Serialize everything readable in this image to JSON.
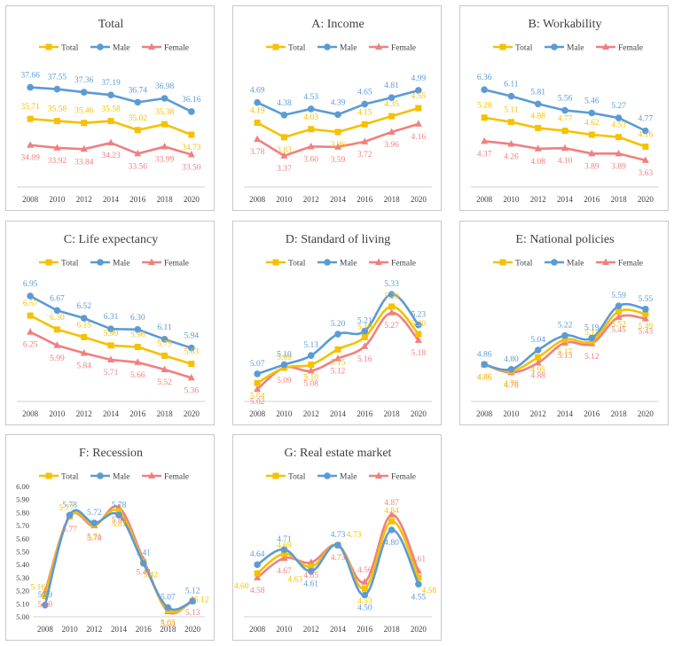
{
  "legend": [
    "Total",
    "Male",
    "Female"
  ],
  "colors": {
    "Total": "#f5c100",
    "Male": "#5b9bd5",
    "Female": "#f08080"
  },
  "chart_data": [
    {
      "type": "line",
      "title": "Total",
      "x": [
        "2008",
        "2010",
        "2012",
        "2014",
        "2016",
        "2018",
        "2020"
      ],
      "series": [
        {
          "name": "Total",
          "values": [
            35.71,
            35.58,
            35.46,
            35.58,
            35.02,
            35.38,
            34.73
          ]
        },
        {
          "name": "Male",
          "values": [
            37.66,
            37.55,
            37.36,
            37.19,
            36.74,
            36.98,
            36.16
          ]
        },
        {
          "name": "Female",
          "values": [
            34.09,
            33.92,
            33.84,
            34.23,
            33.56,
            33.99,
            33.5
          ]
        }
      ],
      "ylim": [
        31.5,
        39.5
      ]
    },
    {
      "type": "line",
      "title": "A: Income",
      "x": [
        "2008",
        "2010",
        "2012",
        "2014",
        "2016",
        "2018",
        "2020"
      ],
      "series": [
        {
          "name": "Total",
          "values": [
            4.19,
            3.83,
            4.03,
            3.96,
            4.15,
            4.35,
            4.55
          ]
        },
        {
          "name": "Male",
          "values": [
            4.69,
            4.38,
            4.53,
            4.39,
            4.65,
            4.81,
            4.99
          ]
        },
        {
          "name": "Female",
          "values": [
            3.78,
            3.37,
            3.6,
            3.59,
            3.72,
            3.96,
            4.16
          ]
        }
      ],
      "ylim": [
        2.6,
        5.8
      ]
    },
    {
      "type": "line",
      "title": "B: Workability",
      "x": [
        "2008",
        "2010",
        "2012",
        "2014",
        "2016",
        "2018",
        "2020"
      ],
      "series": [
        {
          "name": "Total",
          "values": [
            5.28,
            5.11,
            4.88,
            4.77,
            4.62,
            4.53,
            4.16
          ]
        },
        {
          "name": "Male",
          "values": [
            6.36,
            6.11,
            5.81,
            5.56,
            5.46,
            5.27,
            4.77
          ]
        },
        {
          "name": "Female",
          "values": [
            4.37,
            4.26,
            4.08,
            4.1,
            3.89,
            3.89,
            3.63
          ]
        }
      ],
      "ylim": [
        2.6,
        7.6
      ]
    },
    {
      "type": "line",
      "title": "C: Life expectancy",
      "x": [
        "2008",
        "2010",
        "2012",
        "2014",
        "2016",
        "2018",
        "2020"
      ],
      "series": [
        {
          "name": "Total",
          "values": [
            6.57,
            6.3,
            6.15,
            5.99,
            5.96,
            5.79,
            5.63
          ]
        },
        {
          "name": "Male",
          "values": [
            6.95,
            6.67,
            6.52,
            6.31,
            6.3,
            6.11,
            5.94
          ]
        },
        {
          "name": "Female",
          "values": [
            6.25,
            5.99,
            5.84,
            5.71,
            5.66,
            5.52,
            5.36
          ]
        }
      ],
      "ylim": [
        4.9,
        7.4
      ]
    },
    {
      "type": "line",
      "title": "D: Standard of living",
      "x": [
        "2008",
        "2010",
        "2012",
        "2014",
        "2016",
        "2018",
        "2020"
      ],
      "series": [
        {
          "name": "Total",
          "values": [
            5.04,
            5.09,
            5.1,
            5.15,
            5.19,
            5.29,
            5.2
          ]
        },
        {
          "name": "Male",
          "values": [
            5.07,
            5.1,
            5.13,
            5.2,
            5.21,
            5.33,
            5.23
          ]
        },
        {
          "name": "Female",
          "values": [
            5.02,
            5.09,
            5.08,
            5.12,
            5.16,
            5.27,
            5.18
          ]
        }
      ],
      "ylim": [
        4.98,
        5.4
      ]
    },
    {
      "type": "line",
      "title": "E: National policies",
      "x": [
        "2008",
        "2010",
        "2012",
        "2014",
        "2016",
        "2018",
        "2020"
      ],
      "series": [
        {
          "name": "Total",
          "values": [
            4.86,
            4.78,
            4.95,
            5.17,
            5.15,
            5.52,
            5.49
          ]
        },
        {
          "name": "Male",
          "values": [
            4.86,
            4.8,
            5.04,
            5.22,
            5.19,
            5.59,
            5.55
          ]
        },
        {
          "name": "Female",
          "values": [
            4.86,
            4.76,
            4.88,
            5.13,
            5.12,
            5.45,
            5.43
          ]
        }
      ],
      "ylim": [
        4.4,
        6.0
      ]
    },
    {
      "type": "line",
      "title": "F: Recession",
      "x": [
        "2008",
        "2010",
        "2012",
        "2014",
        "2016",
        "2018",
        "2020"
      ],
      "series": [
        {
          "name": "Total",
          "values": [
            5.16,
            5.77,
            5.71,
            5.81,
            5.42,
            5.05,
            5.12
          ]
        },
        {
          "name": "Male",
          "values": [
            5.09,
            5.78,
            5.72,
            5.78,
            5.41,
            5.07,
            5.12
          ]
        },
        {
          "name": "Female",
          "values": [
            5.19,
            5.77,
            5.7,
            5.84,
            5.44,
            5.04,
            5.13
          ]
        }
      ],
      "yticks": [
        "5.00",
        "5.10",
        "5.20",
        "5.30",
        "5.40",
        "5.50",
        "5.60",
        "5.70",
        "5.80",
        "5.90",
        "6.00"
      ],
      "ylim": [
        5.0,
        6.0
      ]
    },
    {
      "type": "line",
      "title": "G: Real estate market",
      "x": [
        "2008",
        "2010",
        "2012",
        "2014",
        "2016",
        "2018",
        "2020"
      ],
      "series": [
        {
          "name": "Total",
          "values": [
            4.6,
            4.69,
            4.63,
            4.73,
            4.53,
            4.84,
            4.58
          ]
        },
        {
          "name": "Male",
          "values": [
            4.64,
            4.71,
            4.61,
            4.73,
            4.5,
            4.8,
            4.55
          ]
        },
        {
          "name": "Female",
          "values": [
            4.58,
            4.67,
            4.65,
            4.73,
            4.56,
            4.87,
            4.61
          ]
        }
      ],
      "ylim": [
        4.4,
        5.0
      ]
    }
  ]
}
